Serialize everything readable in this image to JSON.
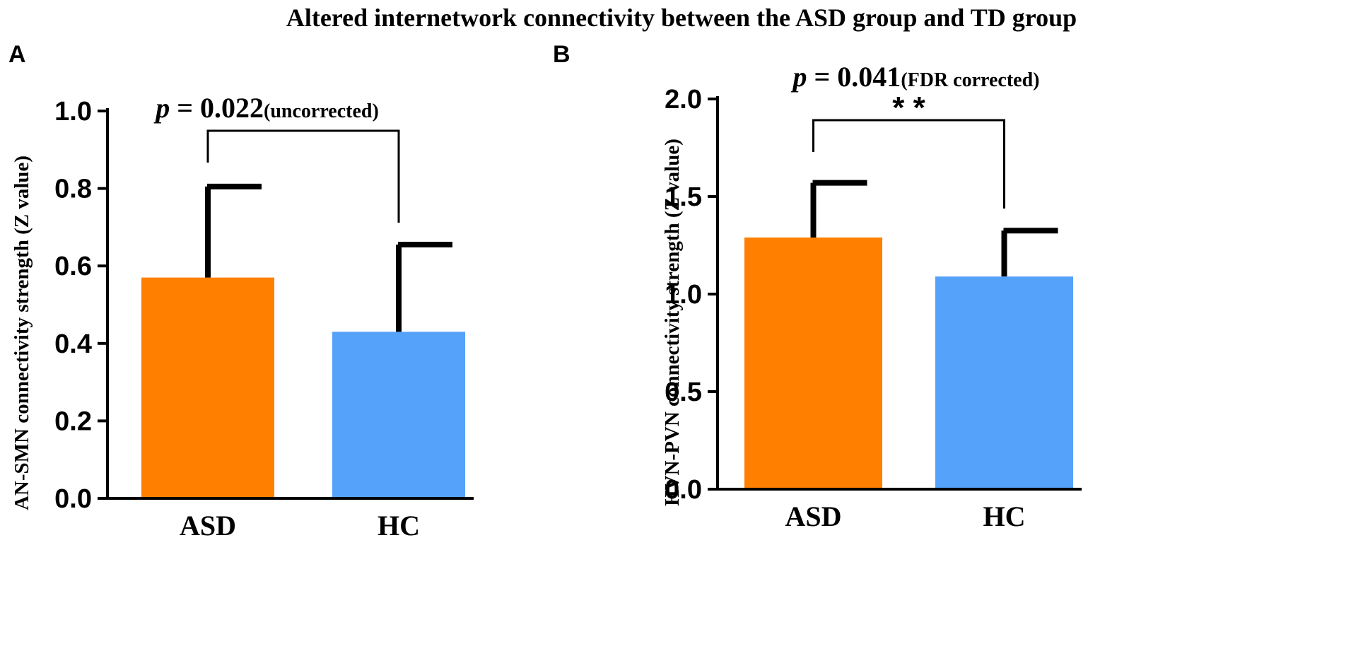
{
  "figure_title": "Altered internetwork connectivity between the ASD group and TD group",
  "chart_data": [
    {
      "type": "bar",
      "panel": "A",
      "categories": [
        "ASD",
        "HC"
      ],
      "values": [
        0.57,
        0.43
      ],
      "errors": [
        0.235,
        0.225
      ],
      "colors": [
        "#FF8000",
        "#55A2FA"
      ],
      "ylabel": "AN-SMN connectivity strength (Z value)",
      "ylim": [
        0,
        1.0
      ],
      "yticks": [
        "0.0",
        "0.2",
        "0.4",
        "0.6",
        "0.8",
        "1.0"
      ],
      "annotation": {
        "p_symbol": "p",
        "p_text": " = 0.022",
        "note": "(uncorrected)",
        "stars": ""
      }
    },
    {
      "type": "bar",
      "panel": "B",
      "categories": [
        "ASD",
        "HC"
      ],
      "values": [
        1.29,
        1.09
      ],
      "errors": [
        0.28,
        0.235
      ],
      "colors": [
        "#FF8000",
        "#55A2FA"
      ],
      "ylabel": "HVN-PVN connectivity strength (Z value)",
      "ylim": [
        0,
        2.0
      ],
      "yticks": [
        "0.0",
        "0.5",
        "1.0",
        "1.5",
        "2.0"
      ],
      "annotation": {
        "p_symbol": "p",
        "p_text": " = 0.041",
        "note": "(FDR corrected)",
        "stars": "* *"
      }
    }
  ]
}
